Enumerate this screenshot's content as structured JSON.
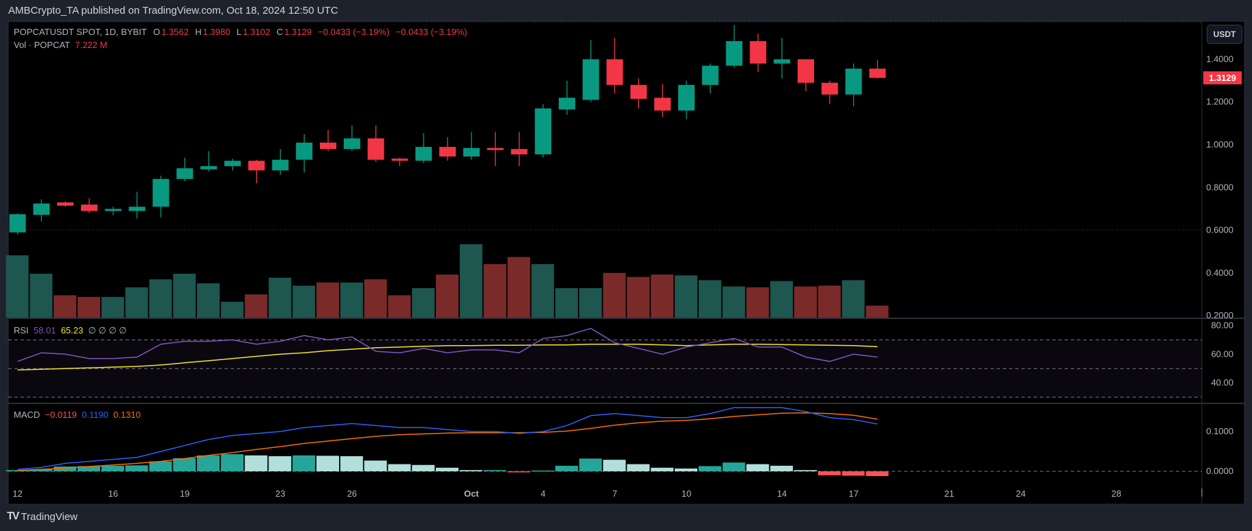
{
  "header": {
    "published": "AMBCrypto_TA published on TradingView.com, Oct 18, 2024 12:50 UTC",
    "symbol": "POPCATUSDT SPOT, 1D, BYBIT",
    "o_label": "O",
    "o": "1.3562",
    "h_label": "H",
    "h": "1.3980",
    "l_label": "L",
    "l": "1.3102",
    "c_label": "C",
    "c": "1.3129",
    "change1": "−0.0433 (−3.19%)",
    "change2": "−0.0433 (−3.19%)",
    "vol_label": "Vol · POPCAT",
    "vol_value": "7.222 M"
  },
  "currency_button": "USDT",
  "last_price": "1.3129",
  "rsi_legend": {
    "label": "RSI",
    "rsi": "58.01",
    "ma": "65.23",
    "extra": "∅ ∅ ∅ ∅"
  },
  "macd_legend": {
    "label": "MACD",
    "hist": "−0.0119",
    "macd": "0.1190",
    "signal": "0.1310"
  },
  "footer": {
    "logo": "TV",
    "brand": "TradingView"
  },
  "colors": {
    "up": "#089981",
    "down": "#f23645",
    "vol_up": "#1e5650",
    "vol_down": "#7b2a2a",
    "rsi": "#7e57c2",
    "rsi_ma": "#f5e52a",
    "macd": "#2962ff",
    "signal": "#ff6d00",
    "hist_up_strong": "#26a69a",
    "hist_up_weak": "#b2dfdb",
    "hist_down_strong": "#ff5252",
    "hist_down_weak": "#ffcdd2"
  },
  "chart_data": {
    "type": "candlestick",
    "price_axis": {
      "ticks": [
        "1.4000",
        "1.2000",
        "1.0000",
        "0.8000",
        "0.6000",
        "0.4000",
        "0.2000"
      ],
      "range": [
        0.2,
        1.55
      ]
    },
    "time_axis": {
      "ticks": [
        [
          "12",
          0
        ],
        [
          "16",
          4
        ],
        [
          "19",
          7
        ],
        [
          "23",
          11
        ],
        [
          "26",
          14
        ],
        [
          "Oct",
          19
        ],
        [
          "4",
          22
        ],
        [
          "7",
          25
        ],
        [
          "10",
          28
        ],
        [
          "14",
          32
        ],
        [
          "17",
          35
        ],
        [
          "21",
          39
        ],
        [
          "24",
          42
        ],
        [
          "28",
          46
        ]
      ]
    },
    "candles_columns": [
      "date",
      "open",
      "high",
      "low",
      "close",
      "volume_M"
    ],
    "candles": [
      [
        "Sep 12",
        0.59,
        0.68,
        0.58,
        0.675,
        37.6
      ],
      [
        "Sep 13",
        0.672,
        0.745,
        0.64,
        0.725,
        26.5
      ],
      [
        "Sep 14",
        0.73,
        0.735,
        0.71,
        0.715,
        13.5
      ],
      [
        "Sep 15",
        0.72,
        0.75,
        0.68,
        0.69,
        12.5
      ],
      [
        "Sep 16",
        0.69,
        0.71,
        0.67,
        0.7,
        12.5
      ],
      [
        "Sep 17",
        0.69,
        0.78,
        0.655,
        0.71,
        18.3
      ],
      [
        "Sep 18",
        0.71,
        0.855,
        0.66,
        0.84,
        23.1
      ],
      [
        "Sep 19",
        0.84,
        0.94,
        0.83,
        0.89,
        26.5
      ],
      [
        "Sep 20",
        0.885,
        0.97,
        0.875,
        0.9,
        20.7
      ],
      [
        "Sep 21",
        0.9,
        0.935,
        0.88,
        0.925,
        9.6
      ],
      [
        "Sep 22",
        0.925,
        0.93,
        0.82,
        0.88,
        14.0
      ],
      [
        "Sep 23",
        0.88,
        0.98,
        0.86,
        0.93,
        24.1
      ],
      [
        "Sep 24",
        0.93,
        1.05,
        0.87,
        1.01,
        19.3
      ],
      [
        "Sep 25",
        1.01,
        1.07,
        0.97,
        0.98,
        21.2
      ],
      [
        "Sep 26",
        0.98,
        1.09,
        0.97,
        1.03,
        21.2
      ],
      [
        "Sep 27",
        1.03,
        1.09,
        0.92,
        0.93,
        23.1
      ],
      [
        "Sep 28",
        0.935,
        0.94,
        0.9,
        0.925,
        13.5
      ],
      [
        "Sep 29",
        0.925,
        1.055,
        0.915,
        0.99,
        17.8
      ],
      [
        "Sep 30",
        0.99,
        1.035,
        0.925,
        0.945,
        26.0
      ],
      [
        "Oct 1",
        0.945,
        1.06,
        0.93,
        0.985,
        44.3
      ],
      [
        "Oct 2",
        0.985,
        1.06,
        0.9,
        0.975,
        32.3
      ],
      [
        "Oct 3",
        0.98,
        1.06,
        0.9,
        0.955,
        36.6
      ],
      [
        "Oct 4",
        0.955,
        1.19,
        0.94,
        1.17,
        32.3
      ],
      [
        "Oct 5",
        1.165,
        1.3,
        1.14,
        1.22,
        17.8
      ],
      [
        "Oct 6",
        1.21,
        1.49,
        1.2,
        1.4,
        17.8
      ],
      [
        "Oct 7",
        1.4,
        1.5,
        1.24,
        1.28,
        27.0
      ],
      [
        "Oct 8",
        1.28,
        1.31,
        1.17,
        1.215,
        24.6
      ],
      [
        "Oct 9",
        1.22,
        1.285,
        1.13,
        1.16,
        26.0
      ],
      [
        "Oct 10",
        1.16,
        1.3,
        1.12,
        1.28,
        25.5
      ],
      [
        "Oct 11",
        1.28,
        1.38,
        1.24,
        1.37,
        22.6
      ],
      [
        "Oct 12",
        1.37,
        1.56,
        1.36,
        1.485,
        18.8
      ],
      [
        "Oct 13",
        1.485,
        1.52,
        1.34,
        1.38,
        18.3
      ],
      [
        "Oct 14",
        1.38,
        1.5,
        1.31,
        1.4,
        22.1
      ],
      [
        "Oct 15",
        1.4,
        1.4,
        1.25,
        1.29,
        18.8
      ],
      [
        "Oct 16",
        1.29,
        1.3,
        1.19,
        1.235,
        19.3
      ],
      [
        "Oct 17",
        1.235,
        1.38,
        1.18,
        1.3562,
        22.6
      ],
      [
        "Oct 18",
        1.3562,
        1.398,
        1.3102,
        1.3129,
        7.222
      ]
    ],
    "rsi": {
      "ticks": [
        "80.00",
        "60.00",
        "40.00"
      ],
      "bands": [
        70,
        50,
        30
      ],
      "rsi": [
        55,
        61,
        60,
        57,
        57,
        58,
        67,
        69,
        69,
        70,
        67,
        69,
        73,
        70,
        72,
        62,
        61,
        64,
        61,
        63,
        63,
        61,
        71,
        73,
        78,
        68,
        64,
        60,
        65,
        68,
        71,
        65,
        65,
        58,
        55,
        60,
        58.01
      ],
      "ma": [
        49,
        49.5,
        50,
        50.5,
        51,
        51.5,
        52.5,
        54,
        55.5,
        57,
        58.5,
        60,
        61,
        62.5,
        63.5,
        64.5,
        65,
        65.5,
        66,
        66,
        66.2,
        66.2,
        66.5,
        66.5,
        67,
        67,
        67,
        66.5,
        66,
        66.5,
        67,
        67,
        66.7,
        66.5,
        66.2,
        66,
        65.23
      ]
    },
    "macd": {
      "ticks": [
        "0.1000",
        "0.0000"
      ],
      "macd": [
        0.005,
        0.01,
        0.02,
        0.025,
        0.03,
        0.035,
        0.05,
        0.065,
        0.08,
        0.09,
        0.095,
        0.1,
        0.11,
        0.115,
        0.12,
        0.115,
        0.11,
        0.11,
        0.105,
        0.1,
        0.1,
        0.095,
        0.1,
        0.115,
        0.14,
        0.145,
        0.14,
        0.135,
        0.135,
        0.145,
        0.16,
        0.16,
        0.16,
        0.15,
        0.135,
        0.13,
        0.119
      ],
      "signal": [
        0.002,
        0.005,
        0.008,
        0.012,
        0.016,
        0.02,
        0.025,
        0.032,
        0.04,
        0.047,
        0.055,
        0.062,
        0.07,
        0.076,
        0.082,
        0.088,
        0.092,
        0.094,
        0.096,
        0.097,
        0.097,
        0.097,
        0.098,
        0.101,
        0.108,
        0.116,
        0.122,
        0.126,
        0.128,
        0.132,
        0.138,
        0.142,
        0.146,
        0.147,
        0.145,
        0.141,
        0.131
      ]
    }
  }
}
